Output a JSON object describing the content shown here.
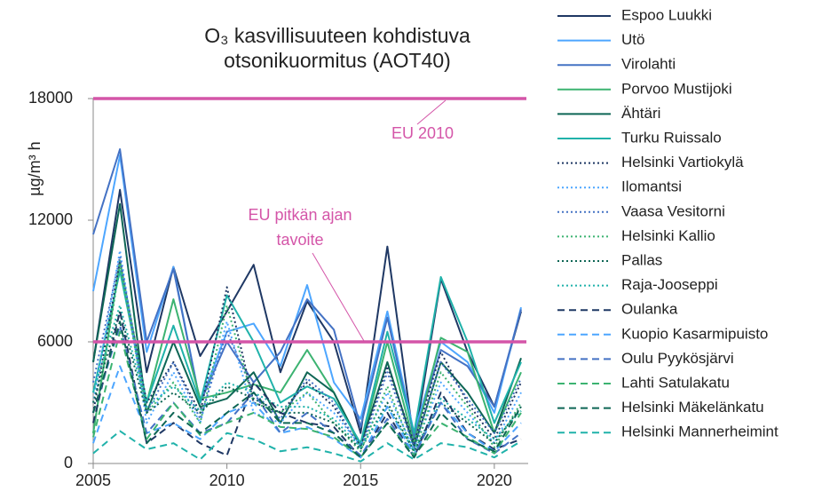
{
  "chart_data": {
    "type": "line",
    "title": [
      "O₃ kasvillisuuteen kohdistuva",
      "otsonikuormitus (AOT40)"
    ],
    "y_label": "µg/m³ h",
    "x": [
      2005,
      2006,
      2007,
      2008,
      2009,
      2010,
      2011,
      2012,
      2013,
      2014,
      2015,
      2016,
      2017,
      2018,
      2019,
      2020,
      2021
    ],
    "xlim": [
      2005,
      2021
    ],
    "xticks": [
      2005,
      2010,
      2015,
      2020
    ],
    "ylim": [
      0,
      18000
    ],
    "yticks": [
      0,
      6000,
      12000,
      18000
    ],
    "grid": false,
    "legend": "right",
    "reference_lines": [
      {
        "label": [
          "EU 2010"
        ],
        "value": 18000,
        "color": "#d455a8"
      },
      {
        "label": [
          "EU pitkän ajan",
          "tavoite"
        ],
        "value": 6000,
        "color": "#d455a8"
      }
    ],
    "series": [
      {
        "name": "Espoo Luukki",
        "color": "#1f3864",
        "style": "solid",
        "values": [
          5000,
          13500,
          4500,
          9700,
          5300,
          7500,
          9800,
          4500,
          8000,
          6000,
          1500,
          10700,
          1000,
          9100,
          5500,
          2800,
          7500
        ]
      },
      {
        "name": "Utö",
        "color": "#4da6ff",
        "style": "solid",
        "values": [
          8500,
          15200,
          5500,
          9700,
          3000,
          6500,
          6900,
          4800,
          8800,
          4000,
          2200,
          7500,
          1500,
          6000,
          5000,
          2500,
          7700
        ]
      },
      {
        "name": "Virolahti",
        "color": "#4472c4",
        "style": "solid",
        "values": [
          11300,
          15500,
          6000,
          9600,
          3000,
          6000,
          4000,
          5500,
          8100,
          6600,
          1800,
          7200,
          1300,
          5600,
          4800,
          2800,
          7600
        ]
      },
      {
        "name": "Porvoo Mustijoki",
        "color": "#3cb371",
        "style": "solid",
        "values": [
          1500,
          10000,
          3000,
          8100,
          3200,
          3500,
          3900,
          3500,
          5600,
          3500,
          800,
          6000,
          1000,
          6200,
          5500,
          1500,
          4500
        ]
      },
      {
        "name": "Ähtäri",
        "color": "#0e6655",
        "style": "solid",
        "values": [
          5000,
          12800,
          2500,
          6000,
          2800,
          3200,
          4500,
          2000,
          4500,
          3500,
          900,
          5000,
          800,
          5000,
          3500,
          1500,
          5200
        ]
      },
      {
        "name": "Turku Ruissalo",
        "color": "#20b2aa",
        "style": "solid",
        "values": [
          3500,
          9500,
          3000,
          6800,
          3000,
          8300,
          6000,
          3000,
          3800,
          3200,
          1000,
          6500,
          1500,
          9200,
          6000,
          2000,
          5000
        ]
      },
      {
        "name": "Helsinki Vartiokylä",
        "color": "#1f3864",
        "style": "dotted",
        "values": [
          2500,
          10000,
          3000,
          5000,
          2500,
          8700,
          3000,
          2500,
          4000,
          2800,
          800,
          4800,
          1000,
          5500,
          3000,
          1200,
          4000
        ]
      },
      {
        "name": "Ilomantsi",
        "color": "#4da6ff",
        "style": "dotted",
        "values": [
          3000,
          10500,
          2000,
          4500,
          2000,
          7000,
          2500,
          2000,
          3500,
          2500,
          900,
          3500,
          700,
          4000,
          2500,
          1000,
          3500
        ]
      },
      {
        "name": "Vaasa Vesitorni",
        "color": "#4472c4",
        "style": "dotted",
        "values": [
          4000,
          10200,
          2500,
          5000,
          2200,
          6500,
          3500,
          2200,
          4200,
          3000,
          700,
          4500,
          800,
          5000,
          3200,
          1500,
          4200
        ]
      },
      {
        "name": "Helsinki Kallio",
        "color": "#3cb371",
        "style": "dotted",
        "values": [
          1500,
          9800,
          2500,
          4000,
          2000,
          7800,
          3000,
          2500,
          3500,
          2000,
          600,
          3800,
          500,
          4500,
          2800,
          800,
          3000
        ]
      },
      {
        "name": "Pallas",
        "color": "#0e6655",
        "style": "dotted",
        "values": [
          3000,
          7500,
          2500,
          3500,
          2500,
          3800,
          3200,
          2500,
          2500,
          2000,
          700,
          3000,
          600,
          3000,
          2000,
          1000,
          2800
        ]
      },
      {
        "name": "Raja-Jooseppi",
        "color": "#20b2aa",
        "style": "dotted",
        "values": [
          3500,
          7800,
          2800,
          3800,
          2600,
          4000,
          3500,
          2800,
          2800,
          2200,
          800,
          2800,
          600,
          3200,
          2200,
          1200,
          2600
        ]
      },
      {
        "name": "Oulanka",
        "color": "#1f3864",
        "style": "dashed",
        "values": [
          2000,
          7500,
          1000,
          2000,
          1000,
          400,
          4000,
          2500,
          2000,
          1800,
          300,
          2500,
          300,
          3500,
          1500,
          700,
          1200
        ]
      },
      {
        "name": "Kuopio Kasarmipuisto",
        "color": "#4da6ff",
        "style": "dashed",
        "values": [
          1000,
          4800,
          1500,
          2000,
          1200,
          2500,
          3000,
          1500,
          1800,
          1200,
          300,
          2800,
          400,
          3000,
          1500,
          600,
          2000
        ]
      },
      {
        "name": "Oulu Pyykösjärvi",
        "color": "#4472c4",
        "style": "dashed",
        "values": [
          2500,
          6800,
          1500,
          3000,
          1500,
          2000,
          3500,
          1500,
          2500,
          1500,
          400,
          2200,
          400,
          3000,
          1200,
          500,
          1500
        ]
      },
      {
        "name": "Lahti Satulakatu",
        "color": "#3cb371",
        "style": "dashed",
        "values": [
          1300,
          6500,
          1200,
          3000,
          1400,
          2000,
          2500,
          1800,
          1700,
          1300,
          300,
          2000,
          400,
          2000,
          1300,
          500,
          2500
        ]
      },
      {
        "name": "Helsinki Mäkelänkatu",
        "color": "#0e6655",
        "style": "dashed",
        "values": [
          2500,
          7000,
          1000,
          2500,
          1500,
          2500,
          3500,
          2000,
          2000,
          1500,
          300,
          2000,
          300,
          2500,
          1200,
          600,
          2800
        ]
      },
      {
        "name": "Helsinki Mannerheimint",
        "color": "#20b2aa",
        "style": "dashed",
        "values": [
          500,
          1600,
          700,
          1000,
          200,
          1500,
          1200,
          600,
          800,
          500,
          100,
          1000,
          200,
          1000,
          800,
          300,
          1100
        ]
      }
    ]
  }
}
